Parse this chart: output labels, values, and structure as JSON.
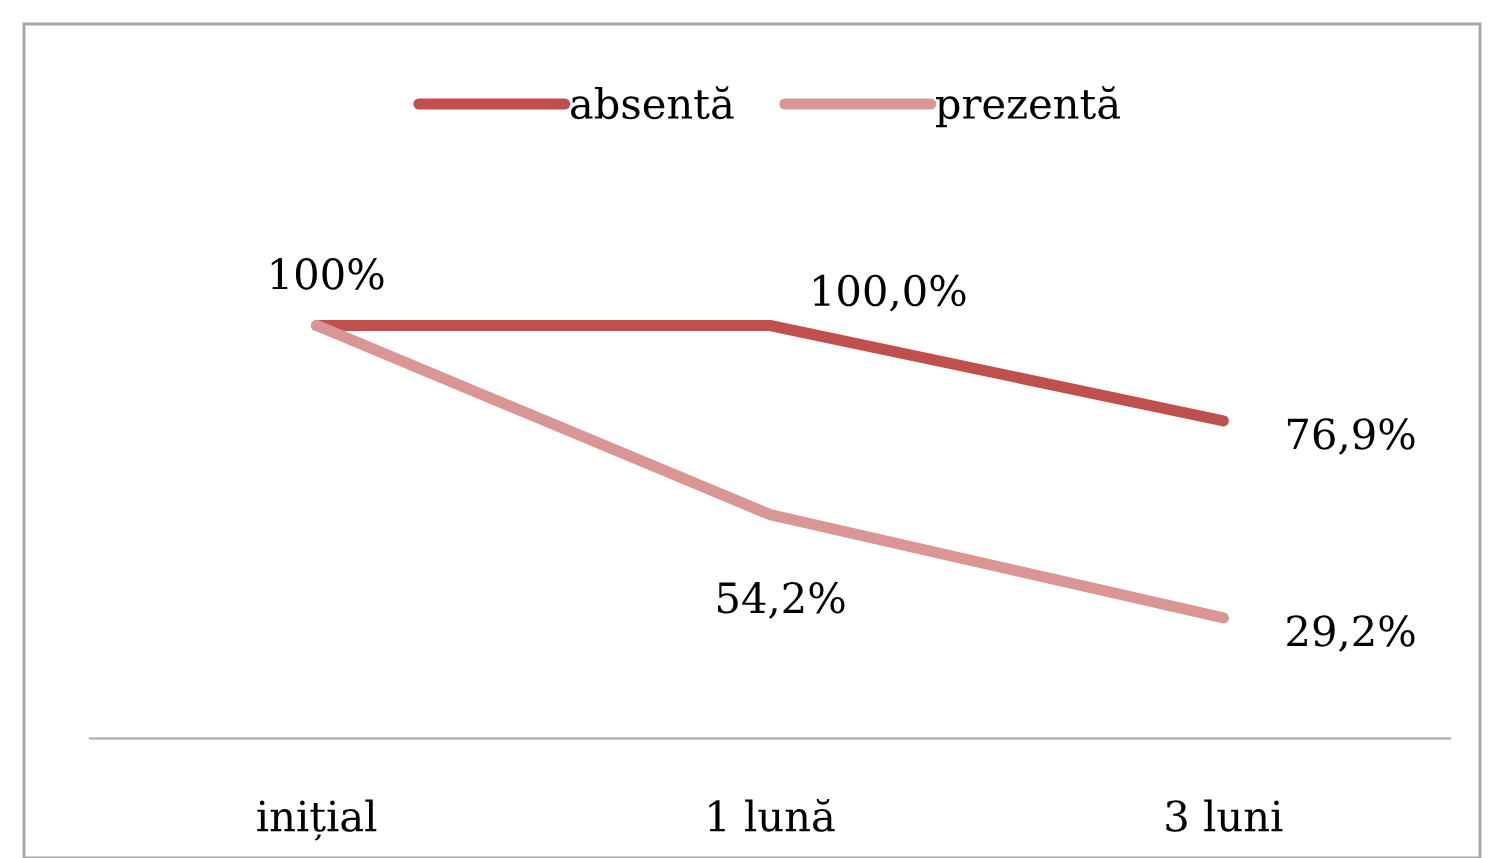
{
  "chart_data": {
    "type": "line",
    "categories": [
      "inițial",
      "1 lună",
      "3 luni"
    ],
    "series": [
      {
        "name": "absentă",
        "color": "#c0504d",
        "values": [
          100,
          100,
          76.9
        ],
        "value_labels": [
          "100%",
          "100,0%",
          "76,9%"
        ]
      },
      {
        "name": "prezentă",
        "color": "#d99694",
        "values": [
          100,
          54.2,
          29.2
        ],
        "value_labels": [
          null,
          "54,2%",
          "29,2%"
        ]
      }
    ],
    "tick_labels": "x",
    "grid": false,
    "legend": "top",
    "marker": "none",
    "line_style": "solid"
  }
}
